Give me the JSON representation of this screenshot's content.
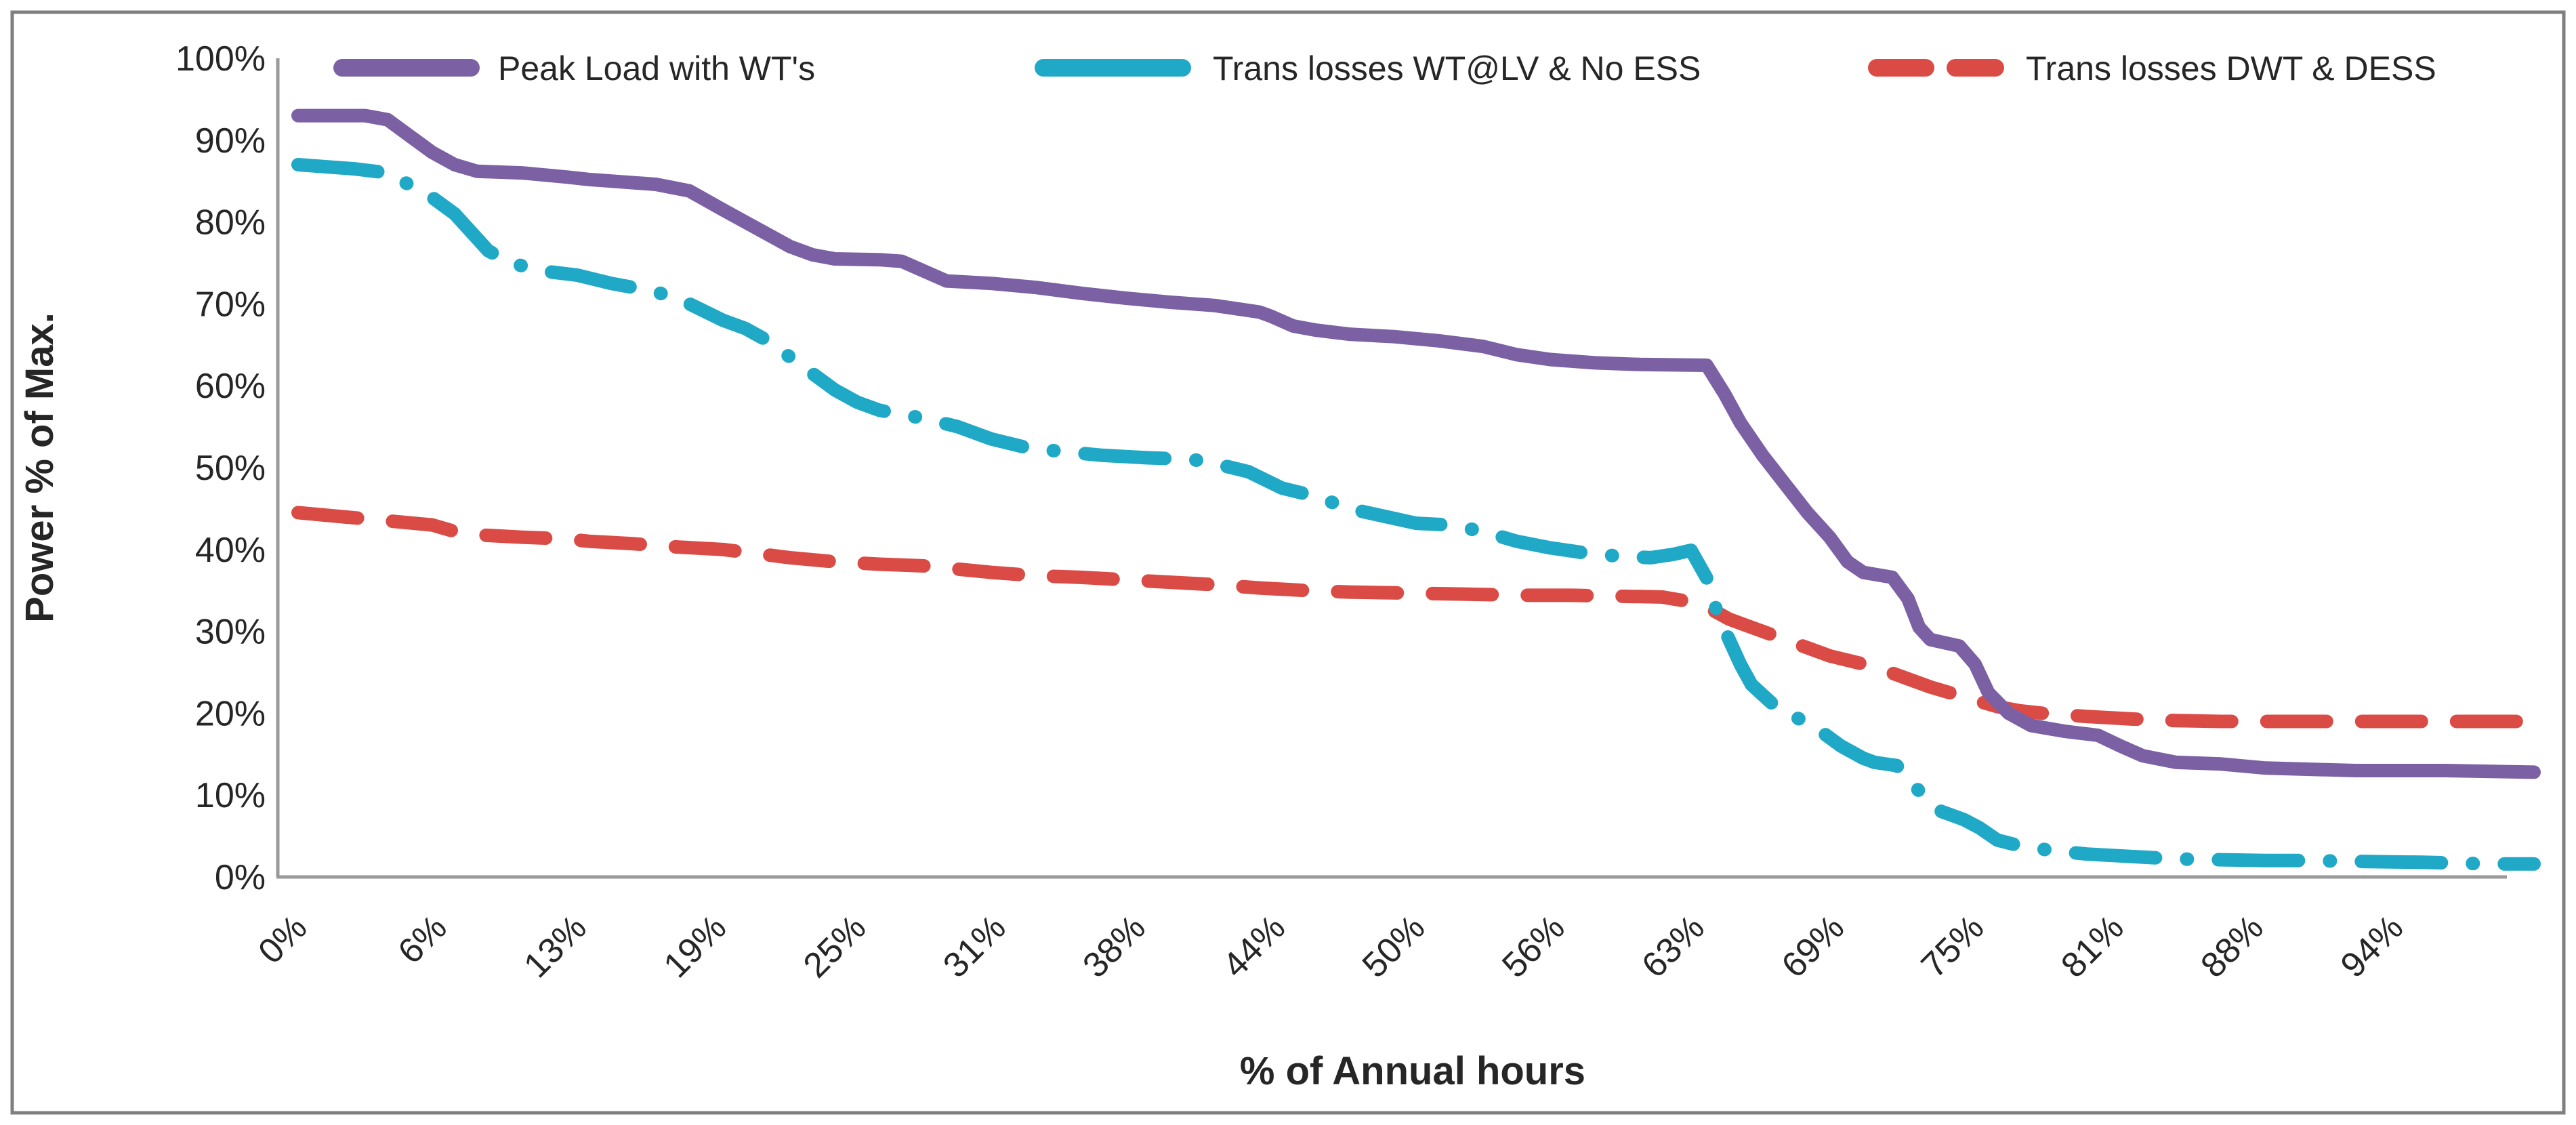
{
  "figure": {
    "border_color": "#7F7F7F",
    "background_color": "#FFFFFF",
    "axis_line_color": "#9A9A9A",
    "text_color": "#262626"
  },
  "chart_data": {
    "type": "line",
    "title": "",
    "xlabel": "% of Annual hours",
    "ylabel": "Power % of Max.",
    "grid": false,
    "legend_position": "top",
    "xlim": [
      0,
      101
    ],
    "ylim": [
      0,
      100
    ],
    "x_tick_labels": [
      "0%",
      "6%",
      "13%",
      "19%",
      "25%",
      "31%",
      "38%",
      "44%",
      "50%",
      "56%",
      "63%",
      "69%",
      "75%",
      "81%",
      "88%",
      "94%"
    ],
    "x_tick_values": [
      0,
      6.25,
      12.5,
      18.75,
      25,
      31.25,
      37.5,
      43.75,
      50,
      56.25,
      62.5,
      68.75,
      75,
      81.25,
      87.5,
      93.75
    ],
    "y_tick_labels": [
      "0%",
      "10%",
      "20%",
      "30%",
      "40%",
      "50%",
      "60%",
      "70%",
      "80%",
      "90%",
      "100%"
    ],
    "y_tick_values": [
      0,
      10,
      20,
      30,
      40,
      50,
      60,
      70,
      80,
      90,
      100
    ],
    "series": [
      {
        "name": "Peak Load with WT's",
        "color": "#7C60A4",
        "style": "solid",
        "points": [
          [
            0,
            93
          ],
          [
            3,
            93
          ],
          [
            4,
            92.5
          ],
          [
            5,
            90.5
          ],
          [
            6,
            88.5
          ],
          [
            7,
            87
          ],
          [
            8,
            86.2
          ],
          [
            10,
            86
          ],
          [
            12,
            85.5
          ],
          [
            13,
            85.2
          ],
          [
            15,
            84.8
          ],
          [
            16,
            84.6
          ],
          [
            17.5,
            83.8
          ],
          [
            19,
            81.5
          ],
          [
            20,
            80
          ],
          [
            21,
            78.5
          ],
          [
            22,
            77
          ],
          [
            23,
            76
          ],
          [
            24,
            75.5
          ],
          [
            26,
            75.4
          ],
          [
            27,
            75.2
          ],
          [
            28,
            74
          ],
          [
            29,
            72.8
          ],
          [
            31,
            72.5
          ],
          [
            33,
            72
          ],
          [
            35,
            71.3
          ],
          [
            37,
            70.7
          ],
          [
            39,
            70.2
          ],
          [
            41,
            69.8
          ],
          [
            43,
            69
          ],
          [
            43.5,
            68.5
          ],
          [
            44.5,
            67.3
          ],
          [
            45.5,
            66.8
          ],
          [
            47,
            66.3
          ],
          [
            49,
            66
          ],
          [
            51,
            65.5
          ],
          [
            53,
            64.8
          ],
          [
            54.5,
            63.8
          ],
          [
            56,
            63.2
          ],
          [
            58,
            62.8
          ],
          [
            60,
            62.6
          ],
          [
            63,
            62.5
          ],
          [
            63.8,
            59
          ],
          [
            64.5,
            55.5
          ],
          [
            65.5,
            51.5
          ],
          [
            66.5,
            48
          ],
          [
            67.5,
            44.5
          ],
          [
            68.5,
            41.5
          ],
          [
            69.3,
            38.5
          ],
          [
            70,
            37.2
          ],
          [
            71.3,
            36.6
          ],
          [
            72,
            34
          ],
          [
            72.5,
            30.5
          ],
          [
            73,
            29
          ],
          [
            74.3,
            28.2
          ],
          [
            75,
            26
          ],
          [
            75.6,
            22.5
          ],
          [
            76.5,
            20
          ],
          [
            77.5,
            18.5
          ],
          [
            79,
            17.8
          ],
          [
            80.5,
            17.3
          ],
          [
            81.5,
            16
          ],
          [
            82.5,
            14.8
          ],
          [
            84,
            14
          ],
          [
            86,
            13.8
          ],
          [
            88,
            13.3
          ],
          [
            92,
            13
          ],
          [
            96,
            13
          ],
          [
            100,
            12.8
          ]
        ]
      },
      {
        "name": "Trans losses WT@LV & No ESS",
        "color": "#1FA9C6",
        "style": "dash-dot",
        "points": [
          [
            0,
            87
          ],
          [
            2.5,
            86.5
          ],
          [
            4,
            86
          ],
          [
            5,
            84.5
          ],
          [
            6,
            83
          ],
          [
            7,
            81
          ],
          [
            7.5,
            79.5
          ],
          [
            8.5,
            76.5
          ],
          [
            9.5,
            75
          ],
          [
            11,
            74
          ],
          [
            12.5,
            73.5
          ],
          [
            14,
            72.5
          ],
          [
            16,
            71.5
          ],
          [
            17.5,
            70
          ],
          [
            19,
            68
          ],
          [
            20,
            67
          ],
          [
            21,
            65.5
          ],
          [
            22,
            63.5
          ],
          [
            23,
            61.5
          ],
          [
            24,
            59.5
          ],
          [
            25,
            58
          ],
          [
            26,
            57
          ],
          [
            27,
            56.5
          ],
          [
            28,
            56
          ],
          [
            29.5,
            55
          ],
          [
            31,
            53.5
          ],
          [
            32.5,
            52.5
          ],
          [
            34,
            52
          ],
          [
            36,
            51.5
          ],
          [
            38,
            51.2
          ],
          [
            40,
            51
          ],
          [
            41,
            50.5
          ],
          [
            42.5,
            49.5
          ],
          [
            44,
            47.5
          ],
          [
            45.5,
            46.5
          ],
          [
            47,
            45
          ],
          [
            48,
            44.4
          ],
          [
            50,
            43.2
          ],
          [
            51.5,
            43
          ],
          [
            53,
            42.2
          ],
          [
            54.5,
            41
          ],
          [
            56,
            40.2
          ],
          [
            57.5,
            39.6
          ],
          [
            59,
            39.2
          ],
          [
            60.5,
            39
          ],
          [
            61.5,
            39.4
          ],
          [
            62.3,
            39.9
          ],
          [
            63,
            36.5
          ],
          [
            63.5,
            32
          ],
          [
            64,
            29
          ],
          [
            64.5,
            26
          ],
          [
            65,
            23.5
          ],
          [
            66,
            21
          ],
          [
            67,
            19.5
          ],
          [
            68,
            18
          ],
          [
            69,
            16
          ],
          [
            70,
            14.5
          ],
          [
            70.5,
            14
          ],
          [
            71.5,
            13.6
          ],
          [
            72.5,
            10.5
          ],
          [
            73.5,
            8
          ],
          [
            74.5,
            7
          ],
          [
            75.2,
            6
          ],
          [
            76,
            4.5
          ],
          [
            77,
            3.8
          ],
          [
            78.5,
            3.2
          ],
          [
            80,
            2.8
          ],
          [
            82,
            2.5
          ],
          [
            84,
            2.2
          ],
          [
            86,
            2.1
          ],
          [
            88,
            2
          ],
          [
            90,
            2
          ],
          [
            92,
            1.9
          ],
          [
            95,
            1.8
          ],
          [
            98,
            1.6
          ],
          [
            100,
            1.6
          ]
        ]
      },
      {
        "name": "Trans losses DWT & DESS",
        "color": "#DB4B45",
        "style": "dashed",
        "points": [
          [
            0,
            44.5
          ],
          [
            2,
            44
          ],
          [
            4,
            43.5
          ],
          [
            6,
            43
          ],
          [
            7,
            42.2
          ],
          [
            8,
            41.8
          ],
          [
            10,
            41.5
          ],
          [
            12,
            41.3
          ],
          [
            13,
            41
          ],
          [
            15,
            40.7
          ],
          [
            17,
            40.3
          ],
          [
            19,
            40
          ],
          [
            20.5,
            39.5
          ],
          [
            22,
            39
          ],
          [
            24,
            38.5
          ],
          [
            26,
            38.2
          ],
          [
            28,
            38
          ],
          [
            29.5,
            37.6
          ],
          [
            31,
            37.2
          ],
          [
            33,
            36.8
          ],
          [
            35,
            36.6
          ],
          [
            37,
            36.3
          ],
          [
            39,
            36
          ],
          [
            41,
            35.7
          ],
          [
            43,
            35.3
          ],
          [
            45,
            35
          ],
          [
            47,
            34.8
          ],
          [
            49,
            34.7
          ],
          [
            51,
            34.6
          ],
          [
            53,
            34.5
          ],
          [
            55,
            34.4
          ],
          [
            57,
            34.4
          ],
          [
            59,
            34.3
          ],
          [
            61,
            34.2
          ],
          [
            62.5,
            33.5
          ],
          [
            63,
            33
          ],
          [
            64,
            31.5
          ],
          [
            65,
            30.5
          ],
          [
            66,
            29.5
          ],
          [
            67.5,
            28
          ],
          [
            68.5,
            27
          ],
          [
            70,
            26
          ],
          [
            71,
            25.2
          ],
          [
            72,
            24.2
          ],
          [
            73,
            23.2
          ],
          [
            74,
            22.4
          ],
          [
            75,
            21.6
          ],
          [
            76,
            20.8
          ],
          [
            77,
            20.3
          ],
          [
            78,
            20
          ],
          [
            80,
            19.6
          ],
          [
            82,
            19.3
          ],
          [
            84,
            19.1
          ],
          [
            86,
            19
          ],
          [
            88,
            19
          ],
          [
            92,
            19
          ],
          [
            96,
            19
          ],
          [
            100,
            19
          ]
        ]
      }
    ]
  }
}
